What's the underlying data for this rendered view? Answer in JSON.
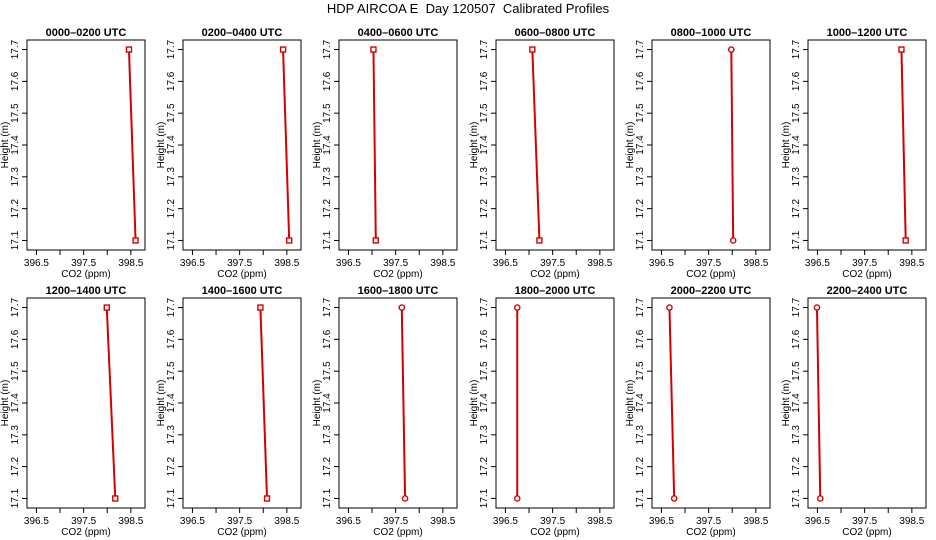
{
  "title": "HDP AIRCOA E  Day 120507  Calibrated Profiles",
  "chart_data": {
    "type": "line",
    "layout": "small-multiples-2x6",
    "xlabel": "CO2 (ppm)",
    "ylabel": "Height (m)",
    "xlim": [
      396.3,
      398.8
    ],
    "ylim": [
      17.07,
      17.73
    ],
    "xticks": [
      "396.5",
      "397.5",
      "398.5"
    ],
    "xticks_minor": [
      397.0,
      398.0
    ],
    "yticks": [
      "17.1",
      "17.2",
      "17.3",
      "17.4",
      "17.5",
      "17.6",
      "17.7"
    ],
    "series_color": "#d40000",
    "marker": "square-open",
    "panels": [
      {
        "title": "0000–0200 UTC",
        "x": [
          398.6,
          398.46
        ],
        "y": [
          17.1,
          17.7
        ],
        "marker": "square"
      },
      {
        "title": "0200–0400 UTC",
        "x": [
          398.55,
          398.42
        ],
        "y": [
          17.1,
          17.7
        ],
        "marker": "square"
      },
      {
        "title": "0400–0600 UTC",
        "x": [
          397.08,
          397.03
        ],
        "y": [
          17.1,
          17.7
        ],
        "marker": "square"
      },
      {
        "title": "0600–0800 UTC",
        "x": [
          397.22,
          397.07
        ],
        "y": [
          17.1,
          17.7
        ],
        "marker": "square"
      },
      {
        "title": "0800–1000 UTC",
        "x": [
          398.02,
          397.98
        ],
        "y": [
          17.1,
          17.7
        ],
        "marker": "circle"
      },
      {
        "title": "1000–1200 UTC",
        "x": [
          398.37,
          398.28
        ],
        "y": [
          17.1,
          17.7
        ],
        "marker": "square"
      },
      {
        "title": "1200–1400 UTC",
        "x": [
          398.17,
          397.99
        ],
        "y": [
          17.1,
          17.7
        ],
        "marker": "square"
      },
      {
        "title": "1400–1600 UTC",
        "x": [
          398.08,
          397.94
        ],
        "y": [
          17.1,
          17.7
        ],
        "marker": "square"
      },
      {
        "title": "1600–1800 UTC",
        "x": [
          397.7,
          397.63
        ],
        "y": [
          17.1,
          17.7
        ],
        "marker": "circle"
      },
      {
        "title": "1800–2000 UTC",
        "x": [
          396.75,
          396.75
        ],
        "y": [
          17.1,
          17.7
        ],
        "marker": "circle"
      },
      {
        "title": "2000–2200 UTC",
        "x": [
          396.77,
          396.67
        ],
        "y": [
          17.1,
          17.7
        ],
        "marker": "circle"
      },
      {
        "title": "2200–2400 UTC",
        "x": [
          396.56,
          396.49
        ],
        "y": [
          17.1,
          17.7
        ],
        "marker": "circle"
      }
    ]
  }
}
